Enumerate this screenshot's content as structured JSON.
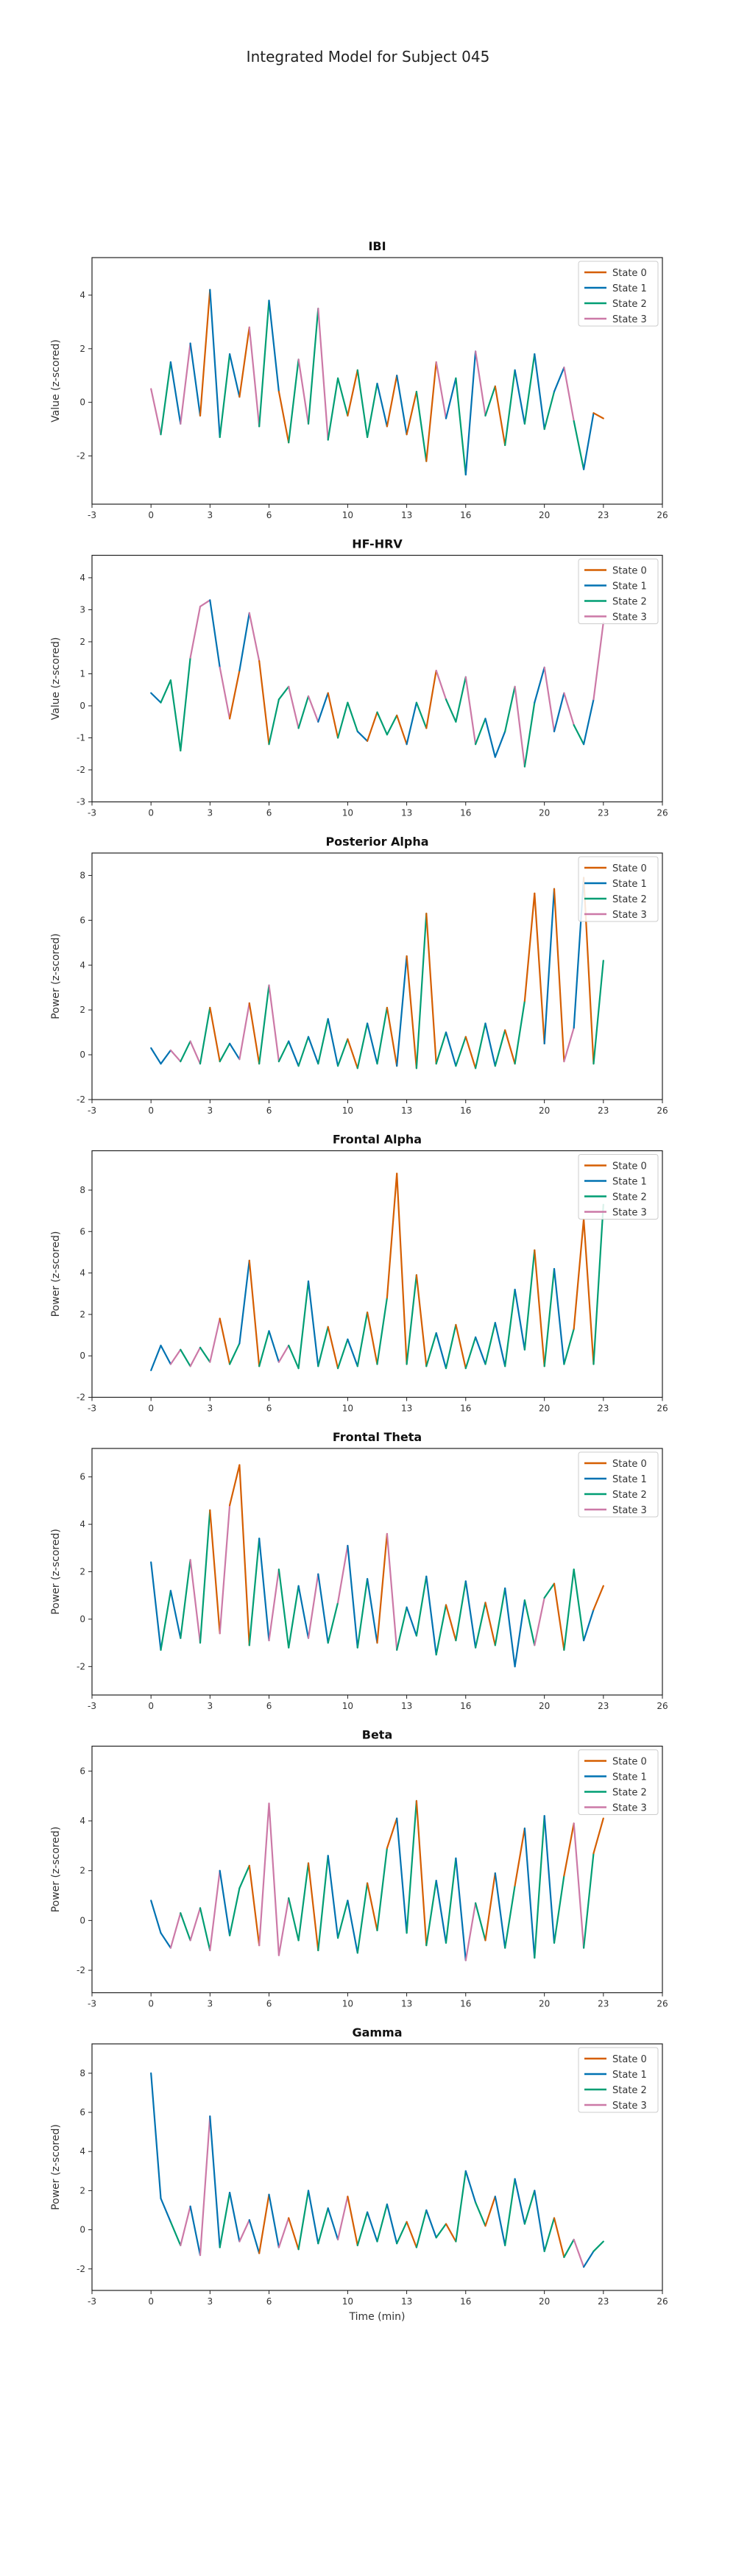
{
  "figure_title": "Integrated Model for Subject 045",
  "colors": {
    "State 0": "#d55e00",
    "State 1": "#0072b2",
    "State 2": "#009e73",
    "State 3": "#cc79a7"
  },
  "chart_data": [
    {
      "type": "line",
      "title": "IBI",
      "xlabel": "",
      "ylabel": "Value (z-scored)",
      "xlim": [
        -3,
        26
      ],
      "ylim": [
        -3.8,
        5.4
      ],
      "xticks": [
        -3,
        0,
        3,
        6,
        10,
        13,
        16,
        20,
        23,
        26
      ],
      "yticks": [
        -2,
        0,
        2,
        4
      ],
      "series": [
        "State 0",
        "State 1",
        "State 2",
        "State 3"
      ],
      "legend": "top-right",
      "grid": false,
      "x": [
        0,
        0.5,
        1,
        1.5,
        2,
        2.5,
        3,
        3.5,
        4,
        4.5,
        5,
        5.5,
        6,
        6.5,
        7,
        7.5,
        8,
        8.5,
        9,
        9.5,
        10,
        10.5,
        11,
        11.5,
        12,
        12.5,
        13,
        13.5,
        14,
        14.5,
        15,
        15.5,
        16,
        16.5,
        17,
        17.5,
        18,
        18.5,
        19,
        19.5,
        20,
        20.5,
        21,
        21.5,
        22,
        22.5,
        23
      ],
      "y": [
        0.5,
        -1.2,
        1.5,
        -0.8,
        2.2,
        -0.5,
        4.2,
        -1.3,
        1.8,
        0.2,
        2.8,
        -0.9,
        3.8,
        0.4,
        -1.5,
        1.6,
        -0.8,
        3.5,
        -1.4,
        0.9,
        -0.5,
        1.2,
        -1.3,
        0.7,
        -0.9,
        1.0,
        -1.2,
        0.4,
        -2.2,
        1.5,
        -0.6,
        0.9,
        -2.7,
        1.9,
        -0.5,
        0.6,
        -1.6,
        1.2,
        -0.8,
        1.8,
        -1.0,
        0.4,
        1.3,
        -0.7,
        -2.5,
        -0.4,
        -0.6
      ],
      "states": [
        3,
        2,
        1,
        3,
        1,
        0,
        1,
        2,
        1,
        0,
        3,
        2,
        1,
        0,
        2,
        3,
        2,
        3,
        2,
        2,
        0,
        2,
        2,
        1,
        0,
        1,
        0,
        2,
        0,
        3,
        1,
        2,
        1,
        3,
        2,
        0,
        2,
        1,
        2,
        1,
        2,
        1,
        3,
        2,
        1,
        0,
        2
      ]
    },
    {
      "type": "line",
      "title": "HF-HRV",
      "xlabel": "",
      "ylabel": "Value (z-scored)",
      "xlim": [
        -3,
        26
      ],
      "ylim": [
        -3,
        4.7
      ],
      "xticks": [
        -3,
        0,
        3,
        6,
        10,
        13,
        16,
        20,
        23,
        26
      ],
      "yticks": [
        -3,
        -2,
        -1,
        0,
        1,
        2,
        3,
        4
      ],
      "series": [
        "State 0",
        "State 1",
        "State 2",
        "State 3"
      ],
      "legend": "top-right",
      "grid": false,
      "x": [
        0,
        0.5,
        1,
        1.5,
        2,
        2.5,
        3,
        3.5,
        4,
        4.5,
        5,
        5.5,
        6,
        6.5,
        7,
        7.5,
        8,
        8.5,
        9,
        9.5,
        10,
        10.5,
        11,
        11.5,
        12,
        12.5,
        13,
        13.5,
        14,
        14.5,
        15,
        15.5,
        16,
        16.5,
        17,
        17.5,
        18,
        18.5,
        19,
        19.5,
        20,
        20.5,
        21,
        21.5,
        22,
        22.5,
        23
      ],
      "y": [
        0.4,
        0.1,
        0.8,
        -1.4,
        1.5,
        3.1,
        3.3,
        1.2,
        -0.4,
        1.1,
        2.9,
        1.4,
        -1.2,
        0.2,
        0.6,
        -0.7,
        0.3,
        -0.5,
        0.4,
        -1.0,
        0.1,
        -0.8,
        -1.1,
        -0.2,
        -0.9,
        -0.3,
        -1.2,
        0.1,
        -0.7,
        1.1,
        0.2,
        -0.5,
        0.9,
        -1.2,
        -0.4,
        -1.6,
        -0.8,
        0.6,
        -1.9,
        0.1,
        1.2,
        -0.8,
        0.4,
        -0.6,
        -1.2,
        0.2,
        2.6
      ],
      "states": [
        1,
        2,
        2,
        2,
        3,
        3,
        1,
        3,
        0,
        1,
        3,
        0,
        2,
        2,
        3,
        2,
        3,
        1,
        0,
        2,
        2,
        1,
        0,
        2,
        2,
        0,
        1,
        2,
        0,
        3,
        2,
        2,
        3,
        2,
        1,
        1,
        2,
        3,
        2,
        1,
        3,
        1,
        3,
        2,
        1,
        3,
        1
      ]
    },
    {
      "type": "line",
      "title": "Posterior Alpha",
      "xlabel": "",
      "ylabel": "Power (z-scored)",
      "xlim": [
        -3,
        26
      ],
      "ylim": [
        -2,
        9
      ],
      "xticks": [
        -3,
        0,
        3,
        6,
        10,
        13,
        16,
        20,
        23,
        26
      ],
      "yticks": [
        -2,
        0,
        2,
        4,
        6,
        8
      ],
      "series": [
        "State 0",
        "State 1",
        "State 2",
        "State 3"
      ],
      "legend": "top-right",
      "grid": false,
      "x": [
        0,
        0.5,
        1,
        1.5,
        2,
        2.5,
        3,
        3.5,
        4,
        4.5,
        5,
        5.5,
        6,
        6.5,
        7,
        7.5,
        8,
        8.5,
        9,
        9.5,
        10,
        10.5,
        11,
        11.5,
        12,
        12.5,
        13,
        13.5,
        14,
        14.5,
        15,
        15.5,
        16,
        16.5,
        17,
        17.5,
        18,
        18.5,
        19,
        19.5,
        20,
        20.5,
        21,
        21.5,
        22,
        22.5,
        23
      ],
      "y": [
        0.3,
        -0.4,
        0.2,
        -0.3,
        0.6,
        -0.4,
        2.1,
        -0.3,
        0.5,
        -0.2,
        2.3,
        -0.4,
        3.1,
        -0.3,
        0.6,
        -0.5,
        0.8,
        -0.4,
        1.6,
        -0.5,
        0.7,
        -0.6,
        1.4,
        -0.4,
        2.1,
        -0.5,
        4.4,
        -0.6,
        6.3,
        -0.4,
        1.0,
        -0.5,
        0.8,
        -0.6,
        1.4,
        -0.5,
        1.1,
        -0.4,
        2.4,
        7.2,
        0.5,
        7.4,
        -0.3,
        1.2,
        7.9,
        -0.4,
        4.2
      ],
      "states": [
        1,
        1,
        3,
        2,
        3,
        2,
        0,
        2,
        1,
        3,
        0,
        2,
        3,
        2,
        1,
        2,
        1,
        2,
        1,
        2,
        0,
        2,
        1,
        2,
        0,
        1,
        0,
        2,
        0,
        2,
        1,
        2,
        0,
        2,
        1,
        2,
        0,
        2,
        0,
        0,
        1,
        0,
        3,
        1,
        0,
        2,
        1
      ]
    },
    {
      "type": "line",
      "title": "Frontal Alpha",
      "xlabel": "",
      "ylabel": "Power (z-scored)",
      "xlim": [
        -3,
        26
      ],
      "ylim": [
        -2,
        9.9
      ],
      "xticks": [
        -3,
        0,
        3,
        6,
        10,
        13,
        16,
        20,
        23,
        26
      ],
      "yticks": [
        -2,
        0,
        2,
        4,
        6,
        8
      ],
      "series": [
        "State 0",
        "State 1",
        "State 2",
        "State 3"
      ],
      "legend": "top-right",
      "grid": false,
      "x": [
        0,
        0.5,
        1,
        1.5,
        2,
        2.5,
        3,
        3.5,
        4,
        4.5,
        5,
        5.5,
        6,
        6.5,
        7,
        7.5,
        8,
        8.5,
        9,
        9.5,
        10,
        10.5,
        11,
        11.5,
        12,
        12.5,
        13,
        13.5,
        14,
        14.5,
        15,
        15.5,
        16,
        16.5,
        17,
        17.5,
        18,
        18.5,
        19,
        19.5,
        20,
        20.5,
        21,
        21.5,
        22,
        22.5,
        23
      ],
      "y": [
        -0.7,
        0.5,
        -0.4,
        0.3,
        -0.5,
        0.4,
        -0.3,
        1.8,
        -0.4,
        0.6,
        4.6,
        -0.5,
        1.2,
        -0.3,
        0.5,
        -0.6,
        3.6,
        -0.5,
        1.4,
        -0.6,
        0.8,
        -0.5,
        2.1,
        -0.4,
        2.8,
        8.8,
        -0.4,
        3.9,
        -0.5,
        1.1,
        -0.6,
        1.5,
        -0.6,
        0.9,
        -0.4,
        1.6,
        -0.5,
        3.2,
        0.3,
        5.1,
        -0.5,
        4.2,
        -0.4,
        1.3,
        6.6,
        -0.4,
        7.3
      ],
      "states": [
        1,
        1,
        3,
        2,
        3,
        2,
        3,
        0,
        2,
        1,
        0,
        2,
        1,
        3,
        2,
        2,
        1,
        2,
        0,
        2,
        1,
        2,
        0,
        2,
        0,
        0,
        2,
        0,
        2,
        1,
        2,
        0,
        2,
        1,
        2,
        1,
        2,
        1,
        2,
        0,
        2,
        1,
        2,
        0,
        0,
        2,
        1
      ]
    },
    {
      "type": "line",
      "title": "Frontal Theta",
      "xlabel": "",
      "ylabel": "Power (z-scored)",
      "xlim": [
        -3,
        26
      ],
      "ylim": [
        -3.2,
        7.2
      ],
      "xticks": [
        -3,
        0,
        3,
        6,
        10,
        13,
        16,
        20,
        23,
        26
      ],
      "yticks": [
        -2,
        0,
        2,
        4,
        6
      ],
      "series": [
        "State 0",
        "State 1",
        "State 2",
        "State 3"
      ],
      "legend": "top-right",
      "grid": false,
      "x": [
        0,
        0.5,
        1,
        1.5,
        2,
        2.5,
        3,
        3.5,
        4,
        4.5,
        5,
        5.5,
        6,
        6.5,
        7,
        7.5,
        8,
        8.5,
        9,
        9.5,
        10,
        10.5,
        11,
        11.5,
        12,
        12.5,
        13,
        13.5,
        14,
        14.5,
        15,
        15.5,
        16,
        16.5,
        17,
        17.5,
        18,
        18.5,
        19,
        19.5,
        20,
        20.5,
        21,
        21.5,
        22,
        22.5,
        23
      ],
      "y": [
        2.4,
        -1.3,
        1.2,
        -0.8,
        2.5,
        -1.0,
        4.6,
        -0.6,
        4.8,
        6.5,
        -1.1,
        3.4,
        -0.9,
        2.1,
        -1.2,
        1.4,
        -0.8,
        1.9,
        -1.0,
        0.7,
        3.1,
        -1.2,
        1.7,
        -1.0,
        3.6,
        -1.3,
        0.5,
        -0.7,
        1.8,
        -1.5,
        0.6,
        -0.9,
        1.6,
        -1.2,
        0.7,
        -1.1,
        1.3,
        -2.0,
        0.8,
        -1.1,
        0.9,
        1.5,
        -1.3,
        2.1,
        -0.9,
        0.4,
        1.4
      ],
      "states": [
        1,
        2,
        1,
        2,
        3,
        2,
        0,
        3,
        0,
        0,
        2,
        1,
        3,
        2,
        2,
        1,
        3,
        1,
        2,
        3,
        1,
        2,
        1,
        0,
        3,
        2,
        1,
        2,
        1,
        2,
        0,
        2,
        1,
        2,
        0,
        2,
        1,
        1,
        2,
        3,
        2,
        0,
        2,
        2,
        1,
        0,
        1
      ]
    },
    {
      "type": "line",
      "title": "Beta",
      "xlabel": "",
      "ylabel": "Power (z-scored)",
      "xlim": [
        -3,
        26
      ],
      "ylim": [
        -2.9,
        7
      ],
      "xticks": [
        -3,
        0,
        3,
        6,
        10,
        13,
        16,
        20,
        23,
        26
      ],
      "yticks": [
        -2,
        0,
        2,
        4,
        6
      ],
      "series": [
        "State 0",
        "State 1",
        "State 2",
        "State 3"
      ],
      "legend": "top-right",
      "grid": false,
      "x": [
        0,
        0.5,
        1,
        1.5,
        2,
        2.5,
        3,
        3.5,
        4,
        4.5,
        5,
        5.5,
        6,
        6.5,
        7,
        7.5,
        8,
        8.5,
        9,
        9.5,
        10,
        10.5,
        11,
        11.5,
        12,
        12.5,
        13,
        13.5,
        14,
        14.5,
        15,
        15.5,
        16,
        16.5,
        17,
        17.5,
        18,
        18.5,
        19,
        19.5,
        20,
        20.5,
        21,
        21.5,
        22,
        22.5,
        23
      ],
      "y": [
        0.8,
        -0.5,
        -1.1,
        0.3,
        -0.8,
        0.5,
        -1.2,
        2.0,
        -0.6,
        1.3,
        2.2,
        -1.0,
        4.7,
        -1.4,
        0.9,
        -0.8,
        2.3,
        -1.2,
        2.6,
        -0.7,
        0.8,
        -1.3,
        1.5,
        -0.4,
        2.9,
        4.1,
        -0.5,
        4.8,
        -1.0,
        1.6,
        -0.9,
        2.5,
        -1.6,
        0.7,
        -0.8,
        1.9,
        -1.1,
        1.4,
        3.7,
        -1.5,
        4.2,
        -0.9,
        1.8,
        3.9,
        -1.1,
        2.7,
        4.1
      ],
      "states": [
        1,
        1,
        3,
        2,
        3,
        2,
        3,
        1,
        2,
        2,
        0,
        3,
        3,
        3,
        2,
        2,
        0,
        2,
        1,
        2,
        1,
        2,
        0,
        2,
        0,
        1,
        2,
        0,
        2,
        1,
        2,
        1,
        3,
        2,
        0,
        1,
        2,
        0,
        1,
        2,
        1,
        2,
        0,
        3,
        2,
        0,
        1
      ]
    },
    {
      "type": "line",
      "title": "Gamma",
      "xlabel": "Time (min)",
      "ylabel": "Power (z-scored)",
      "xlim": [
        -3,
        26
      ],
      "ylim": [
        -3.1,
        9.5
      ],
      "xticks": [
        -3,
        0,
        3,
        6,
        10,
        13,
        16,
        20,
        23,
        26
      ],
      "yticks": [
        -2,
        0,
        2,
        4,
        6,
        8
      ],
      "series": [
        "State 0",
        "State 1",
        "State 2",
        "State 3"
      ],
      "legend": "top-right",
      "grid": false,
      "x": [
        0,
        0.5,
        1,
        1.5,
        2,
        2.5,
        3,
        3.5,
        4,
        4.5,
        5,
        5.5,
        6,
        6.5,
        7,
        7.5,
        8,
        8.5,
        9,
        9.5,
        10,
        10.5,
        11,
        11.5,
        12,
        12.5,
        13,
        13.5,
        14,
        14.5,
        15,
        15.5,
        16,
        16.5,
        17,
        17.5,
        18,
        18.5,
        19,
        19.5,
        20,
        20.5,
        21,
        21.5,
        22,
        22.5,
        23
      ],
      "y": [
        8.0,
        1.6,
        0.4,
        -0.8,
        1.2,
        -1.3,
        5.8,
        -0.9,
        1.9,
        -0.6,
        0.5,
        -1.2,
        1.8,
        -0.9,
        0.6,
        -1.0,
        2.0,
        -0.7,
        1.1,
        -0.5,
        1.7,
        -0.8,
        0.9,
        -0.6,
        1.3,
        -0.7,
        0.4,
        -0.9,
        1.0,
        -0.4,
        0.3,
        -0.6,
        3.0,
        1.4,
        0.2,
        1.7,
        -0.8,
        2.6,
        0.3,
        2.0,
        -1.1,
        0.6,
        -1.4,
        -0.5,
        -1.9,
        -1.1,
        -0.6
      ],
      "states": [
        1,
        1,
        2,
        3,
        1,
        3,
        1,
        2,
        1,
        3,
        1,
        0,
        1,
        3,
        0,
        2,
        1,
        2,
        1,
        3,
        0,
        2,
        1,
        2,
        1,
        2,
        0,
        2,
        1,
        2,
        0,
        2,
        1,
        2,
        0,
        1,
        2,
        1,
        2,
        1,
        2,
        0,
        2,
        3,
        1,
        2,
        1
      ]
    }
  ]
}
